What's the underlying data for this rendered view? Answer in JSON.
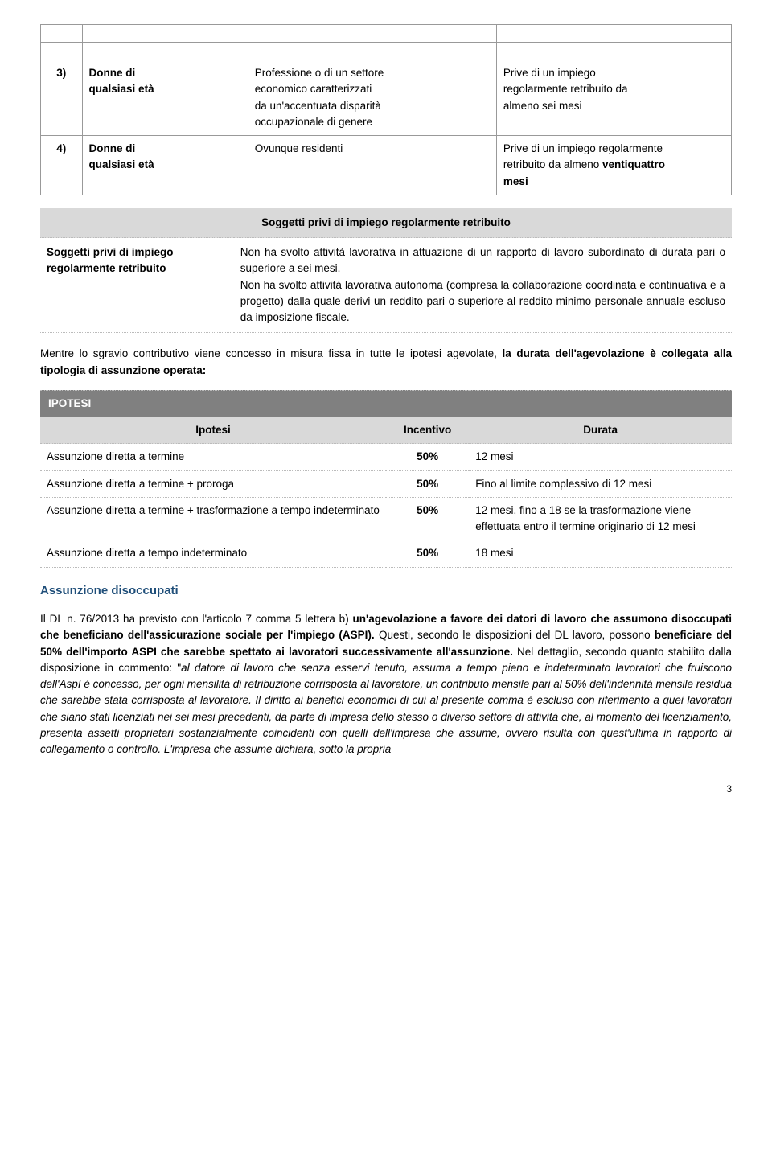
{
  "table1": {
    "rows": [
      {
        "num": "3)",
        "a_l1": "Donne di",
        "a_l2": "qualsiasi età",
        "b_l1": "Professione o di un settore",
        "b_l2": "economico caratterizzati",
        "b_l3": "da un'accentuata disparità",
        "b_l4": "occupazionale di genere",
        "c_l1": "Prive di un impiego",
        "c_l2": "regolarmente retribuito da",
        "c_l3": "almeno sei mesi"
      },
      {
        "num": "4)",
        "a_l1": "Donne di",
        "a_l2": "qualsiasi età",
        "b_l1": "Ovunque residenti",
        "c_l1": "Prive di un impiego regolarmente",
        "c_l2": "retribuito da almeno ",
        "c_bold": "ventiquattro",
        "c_l3": "mesi"
      }
    ]
  },
  "table2": {
    "header": "Soggetti privi di impiego regolarmente retribuito",
    "left": "Soggetti privi di impiego regolarmente retribuito",
    "right_p1": "Non ha svolto attività lavorativa in attuazione di un rapporto di lavoro subordinato di durata pari o superiore a sei mesi.",
    "right_p2": "Non ha svolto attività lavorativa autonoma (compresa la collaborazione coordinata e continuativa e a progetto) dalla quale derivi un reddito pari o superiore al reddito minimo personale annuale escluso da imposizione fiscale."
  },
  "para1_a": "Mentre lo sgravio contributivo viene concesso in misura fissa in tutte le ipotesi agevolate, ",
  "para1_b": "la durata dell'agevolazione è collegata alla tipologia di assunzione operata:",
  "table3": {
    "title": "IPOTESI",
    "h1": "Ipotesi",
    "h2": "Incentivo",
    "h3": "Durata",
    "rows": [
      {
        "c1": "Assunzione diretta a termine",
        "c2": "50%",
        "c3": "12 mesi"
      },
      {
        "c1": "Assunzione diretta a termine + proroga",
        "c2": "50%",
        "c3": "Fino al limite complessivo di 12 mesi"
      },
      {
        "c1": "Assunzione diretta a termine + trasformazione a tempo indeterminato",
        "c2": "50%",
        "c3": "12 mesi, fino a 18 se la trasformazione viene effettuata entro il termine originario di 12 mesi"
      },
      {
        "c1": "Assunzione diretta a tempo indeterminato",
        "c2": "50%",
        "c3": "18 mesi"
      }
    ]
  },
  "section_title": "Assunzione disoccupati",
  "para2": {
    "s1": "Il DL n. 76/2013 ha previsto con l'articolo 7 comma 5 lettera b) ",
    "b1": "un'agevolazione a favore dei datori di lavoro che assumono disoccupati che beneficiano dell'assicurazione sociale per l'impiego (ASPI).",
    "s2": " Questi, secondo le disposizioni del DL lavoro, possono ",
    "b2": "beneficiare del 50% dell'importo ASPI che sarebbe spettato ai lavoratori successivamente all'assunzione.",
    "s3": " Nel dettaglio, secondo quanto stabilito dalla disposizione in commento: \"",
    "i1": "al datore di lavoro che senza esservi tenuto, assuma a tempo pieno e indeterminato lavoratori che fruiscono dell'AspI è concesso, per ogni mensilità di retribuzione corrisposta al lavoratore, un contributo mensile pari al 50% dell'indennità mensile residua che sarebbe stata corrisposta al lavoratore. Il diritto ai benefici economici di cui al presente comma è escluso con riferimento a quei lavoratori che siano stati licenziati nei sei mesi precedenti, da parte di impresa dello stesso o diverso settore di attività che, al momento del licenziamento, presenta assetti proprietari sostanzialmente coincidenti con quelli dell'impresa che assume, ovvero risulta con quest'ultima in rapporto di collegamento o controllo. L'impresa che assume dichiara, sotto la propria"
  },
  "page_number": "3"
}
